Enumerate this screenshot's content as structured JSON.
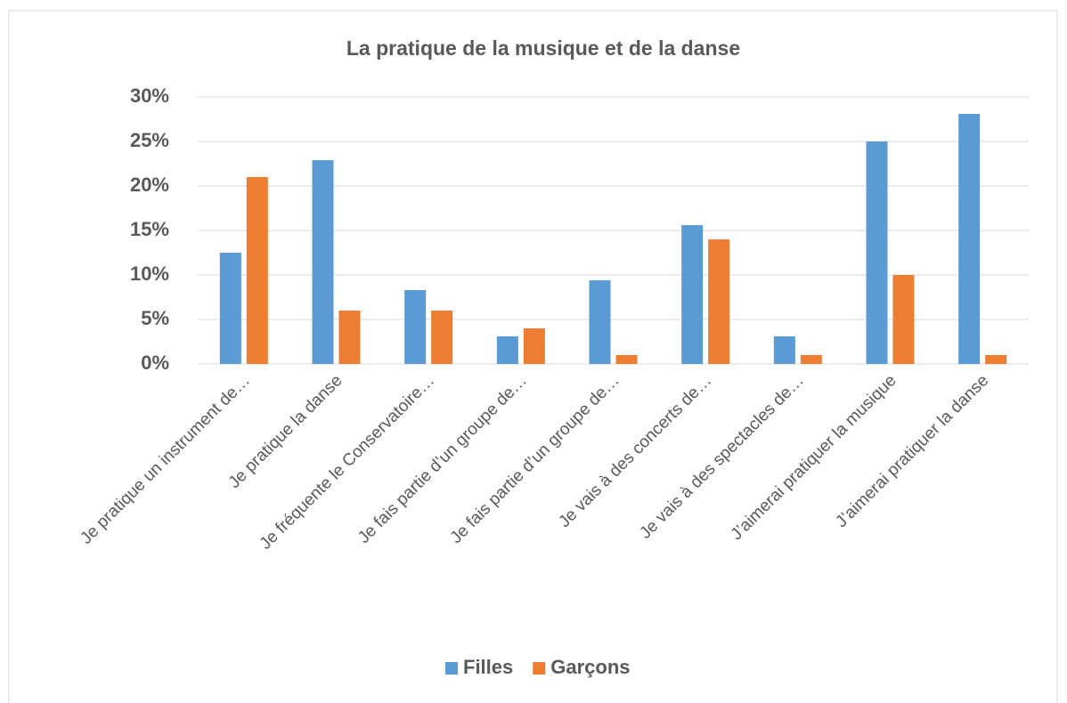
{
  "chart_data": {
    "type": "bar",
    "title": "La pratique de la musique et de la danse",
    "categories": [
      "Je pratique un instrument de…",
      "Je pratique la danse",
      "Je fréquente le Conservatoire…",
      "Je fais partie d’un groupe de…",
      "Je fais partie d’un groupe de…",
      "Je vais à des concerts de…",
      "Je vais à des spectacles de…",
      "J’aimerai pratiquer la musique",
      "J’aimerai pratiquer la danse"
    ],
    "series": [
      {
        "name": "Filles",
        "color": "#5b9bd5",
        "values": [
          12.5,
          22.9,
          8.3,
          3.1,
          9.4,
          15.6,
          3.1,
          25,
          28.1
        ]
      },
      {
        "name": "Garçons",
        "color": "#ed7d31",
        "values": [
          21,
          6,
          6,
          4,
          1,
          14,
          1,
          10,
          1
        ]
      }
    ],
    "ylim": [
      0,
      30
    ],
    "yticks": [
      {
        "value": 0,
        "label": "0%"
      },
      {
        "value": 5,
        "label": "5%"
      },
      {
        "value": 10,
        "label": "10%"
      },
      {
        "value": 15,
        "label": "15%"
      },
      {
        "value": 20,
        "label": "20%"
      },
      {
        "value": 25,
        "label": "25%"
      },
      {
        "value": 30,
        "label": "30%"
      }
    ],
    "grid": true,
    "legend": "bottom"
  }
}
